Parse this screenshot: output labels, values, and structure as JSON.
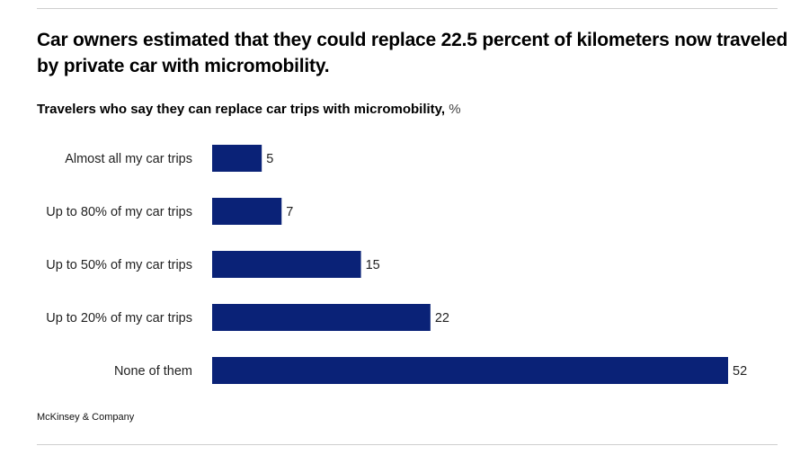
{
  "header": {
    "title": "Car owners estimated that they could replace 22.5 percent of kilometers now traveled by private car with micromobility.",
    "subtitle": "Travelers who say they can replace car trips with micromobility,",
    "subtitle_unit": "%"
  },
  "footer": {
    "source": "McKinsey & Company"
  },
  "colors": {
    "bar": "#0a2277"
  },
  "chart_data": {
    "type": "bar",
    "orientation": "horizontal",
    "title": "Travelers who say they can replace car trips with micromobility, %",
    "xlabel": "",
    "ylabel": "",
    "categories": [
      "Almost all my car trips",
      "Up to 80% of my car trips",
      "Up to 50% of my car trips",
      "Up to 20% of my car trips",
      "None of them"
    ],
    "values": [
      5,
      7,
      15,
      22,
      52
    ],
    "value_labels": [
      "5",
      "7",
      "15",
      "22",
      "52"
    ],
    "xlim": [
      0,
      52
    ],
    "grid": false,
    "legend": "none"
  }
}
